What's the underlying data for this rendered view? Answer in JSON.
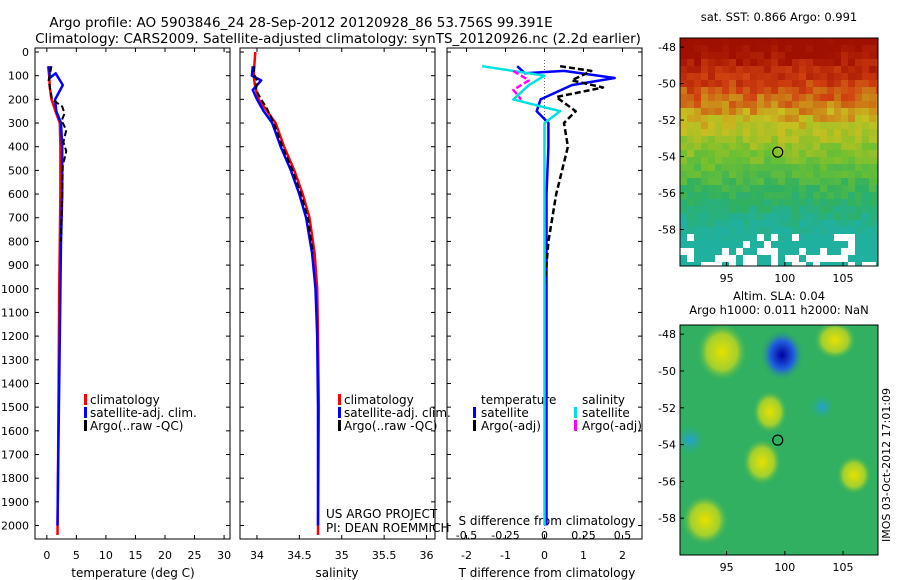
{
  "header": {
    "line1": "Argo profile: AO 5903846_24 28-Sep-2012 20120928_86 53.756S 99.391E",
    "line2": "Climatology: CARS2009. Satellite-adjusted climatology: synTS_20120926.nc (2.2d earlier)"
  },
  "colors": {
    "climatology": "#ff0000",
    "satellite": "#0000ff",
    "argo": "#000000",
    "salinity_satellite": "#00e0e0",
    "salinity_argo": "#ff00ff"
  },
  "chart_data": [
    {
      "type": "line",
      "title": "",
      "xlabel": "temperature (deg C)",
      "ylabel": "",
      "xlim": [
        -2,
        31
      ],
      "ylim": [
        2060,
        0
      ],
      "xticks": [
        "0",
        "5",
        "10",
        "15",
        "20",
        "25",
        "30"
      ],
      "yticks": [
        "0",
        "100",
        "200",
        "300",
        "400",
        "500",
        "600",
        "700",
        "800",
        "900",
        "1000",
        "1100",
        "1200",
        "1300",
        "1400",
        "1500",
        "1600",
        "1700",
        "1800",
        "1900",
        "2000"
      ],
      "legend": [
        "climatology",
        "satellite-adj. clim.",
        "Argo(..raw -QC)"
      ],
      "series": [
        {
          "name": "climatology",
          "points": [
            [
              0.2,
              60
            ],
            [
              0.4,
              100
            ],
            [
              0.5,
              150
            ],
            [
              0.8,
              200
            ],
            [
              1.6,
              260
            ],
            [
              2.2,
              300
            ],
            [
              2.3,
              400
            ],
            [
              2.3,
              600
            ],
            [
              2.2,
              800
            ],
            [
              2.1,
              1000
            ],
            [
              2.0,
              1400
            ],
            [
              1.9,
              1800
            ],
            [
              1.8,
              2040
            ]
          ]
        },
        {
          "name": "satellite-adj. clim.",
          "points": [
            [
              0.4,
              60
            ],
            [
              0.5,
              110
            ],
            [
              1.5,
              90
            ],
            [
              2.7,
              140
            ],
            [
              1.4,
              200
            ],
            [
              1.6,
              250
            ],
            [
              2.4,
              300
            ],
            [
              2.6,
              400
            ],
            [
              2.6,
              600
            ],
            [
              2.4,
              800
            ],
            [
              2.3,
              1000
            ],
            [
              2.1,
              1400
            ],
            [
              1.9,
              1800
            ],
            [
              1.8,
              2000
            ]
          ]
        },
        {
          "name": "Argo(..raw -QC)",
          "points": [
            [
              0.8,
              60
            ],
            [
              0.3,
              120
            ],
            [
              0.9,
              200
            ],
            [
              2.6,
              230
            ],
            [
              3.0,
              260
            ],
            [
              2.5,
              290
            ],
            [
              3.3,
              330
            ],
            [
              2.8,
              380
            ],
            [
              3.3,
              420
            ],
            [
              2.7,
              480
            ],
            [
              2.6,
              600
            ],
            [
              2.4,
              800
            ]
          ]
        }
      ]
    },
    {
      "type": "line",
      "title": "",
      "xlabel": "salinity",
      "ylabel": "",
      "xlim": [
        33.8,
        36.1
      ],
      "ylim": [
        2060,
        0
      ],
      "xticks": [
        "34",
        "34.5",
        "35",
        "35.5",
        "36"
      ],
      "legend": [
        "climatology",
        "satellite-adj. clim.",
        "Argo(..raw -QC)"
      ],
      "annotations": [
        "US ARGO PROJECT",
        "PI: DEAN ROEMMICH"
      ],
      "series": [
        {
          "name": "climatology",
          "points": [
            [
              33.98,
              0
            ],
            [
              33.96,
              100
            ],
            [
              33.98,
              150
            ],
            [
              34.02,
              200
            ],
            [
              34.12,
              250
            ],
            [
              34.22,
              300
            ],
            [
              34.32,
              400
            ],
            [
              34.44,
              500
            ],
            [
              34.54,
              600
            ],
            [
              34.62,
              700
            ],
            [
              34.68,
              850
            ],
            [
              34.71,
              1000
            ],
            [
              34.72,
              1200
            ],
            [
              34.73,
              1500
            ],
            [
              34.72,
              2040
            ]
          ]
        },
        {
          "name": "satellite-adj. clim.",
          "points": [
            [
              33.95,
              60
            ],
            [
              33.94,
              100
            ],
            [
              34.05,
              120
            ],
            [
              33.95,
              160
            ],
            [
              34.0,
              200
            ],
            [
              34.08,
              250
            ],
            [
              34.18,
              300
            ],
            [
              34.28,
              400
            ],
            [
              34.4,
              500
            ],
            [
              34.5,
              600
            ],
            [
              34.58,
              700
            ],
            [
              34.65,
              850
            ],
            [
              34.69,
              1000
            ],
            [
              34.71,
              1200
            ],
            [
              34.72,
              1500
            ],
            [
              34.72,
              2000
            ]
          ]
        },
        {
          "name": "Argo(..raw -QC)",
          "points": [
            [
              33.97,
              60
            ],
            [
              33.96,
              90
            ],
            [
              34.0,
              120
            ],
            [
              33.99,
              160
            ],
            [
              34.05,
              200
            ],
            [
              34.12,
              240
            ],
            [
              34.2,
              300
            ],
            [
              34.3,
              400
            ],
            [
              34.42,
              500
            ],
            [
              34.52,
              600
            ],
            [
              34.6,
              700
            ],
            [
              34.66,
              850
            ]
          ]
        }
      ]
    },
    {
      "type": "line",
      "title": "",
      "xlabel": "T difference from climatology",
      "xlabel_top": "S difference from climatology",
      "ylabel": "",
      "xlim": [
        -2.5,
        2.5
      ],
      "ylim": [
        2060,
        0
      ],
      "xticks": [
        "-2",
        "-1",
        "0",
        "1",
        "2"
      ],
      "xticks_top": [
        "-0.5",
        "-0.25",
        "0",
        "0.25",
        "0.5"
      ],
      "legend_groups": [
        {
          "title": "temperature",
          "items": [
            "satellite",
            "Argo(-adj)"
          ]
        },
        {
          "title": "salinity",
          "items": [
            "satellite",
            "Argo(-adj)"
          ]
        }
      ],
      "series": [
        {
          "name": "temperature satellite",
          "points": [
            [
              -0.7,
              60
            ],
            [
              -0.5,
              90
            ],
            [
              0.5,
              80
            ],
            [
              1.8,
              110
            ],
            [
              0.7,
              140
            ],
            [
              -0.1,
              200
            ],
            [
              -0.2,
              250
            ],
            [
              0.1,
              300
            ],
            [
              0.1,
              400
            ],
            [
              0.05,
              600
            ],
            [
              0.05,
              800
            ],
            [
              0.05,
              1200
            ],
            [
              0.05,
              1600
            ],
            [
              0.05,
              2000
            ]
          ]
        },
        {
          "name": "temperature Argo(-adj)",
          "points": [
            [
              0.4,
              60
            ],
            [
              1.2,
              80
            ],
            [
              0.7,
              120
            ],
            [
              1.5,
              150
            ],
            [
              0.3,
              190
            ],
            [
              0.8,
              250
            ],
            [
              0.5,
              300
            ],
            [
              0.6,
              400
            ],
            [
              0.3,
              600
            ],
            [
              0.1,
              800
            ],
            [
              0.0,
              1000
            ]
          ]
        },
        {
          "name": "salinity satellite",
          "points": [
            [
              -0.4,
              60
            ],
            [
              0.0,
              100
            ],
            [
              -0.1,
              140
            ],
            [
              -0.2,
              200
            ],
            [
              0.1,
              250
            ],
            [
              0.0,
              300
            ],
            [
              0.0,
              600
            ],
            [
              0.0,
              1000
            ],
            [
              0.0,
              1500
            ],
            [
              0.0,
              2000
            ]
          ]
        },
        {
          "name": "salinity Argo(-adj)",
          "points": [
            [
              -0.2,
              80
            ],
            [
              -0.1,
              120
            ],
            [
              -0.2,
              160
            ],
            [
              -0.15,
              200
            ]
          ]
        }
      ]
    },
    {
      "type": "heatmap",
      "title": "sat. SST: 0.866 Argo: 0.991",
      "xlim": [
        91,
        108
      ],
      "ylim": [
        -60,
        -47.5
      ],
      "xticks": [
        "95",
        "100",
        "105"
      ],
      "yticks": [
        "-48",
        "-50",
        "-52",
        "-54",
        "-56",
        "-58"
      ],
      "marker": {
        "lon": 99.391,
        "lat": -53.756
      },
      "gradient": [
        {
          "lat": -48,
          "color": "#a01000"
        },
        {
          "lat": -50,
          "color": "#d04010"
        },
        {
          "lat": -52,
          "color": "#c8c020"
        },
        {
          "lat": -54,
          "color": "#70c030"
        },
        {
          "lat": -56,
          "color": "#30b060"
        },
        {
          "lat": -58,
          "color": "#20b0a0"
        }
      ]
    },
    {
      "type": "heatmap",
      "title": "Altim. SLA: 0.04",
      "subtitle": "Argo h1000: 0.011 h2000: NaN",
      "xlim": [
        91,
        108
      ],
      "ylim": [
        -60,
        -47.5
      ],
      "xticks": [
        "95",
        "100",
        "105"
      ],
      "yticks": [
        "-48",
        "-50",
        "-52",
        "-54",
        "-56",
        "-58"
      ],
      "marker": {
        "lon": 99.391,
        "lat": -53.756
      },
      "base_color": "#30b060"
    }
  ],
  "side_label": "IMOS 03-Oct-2012 17:01:09"
}
